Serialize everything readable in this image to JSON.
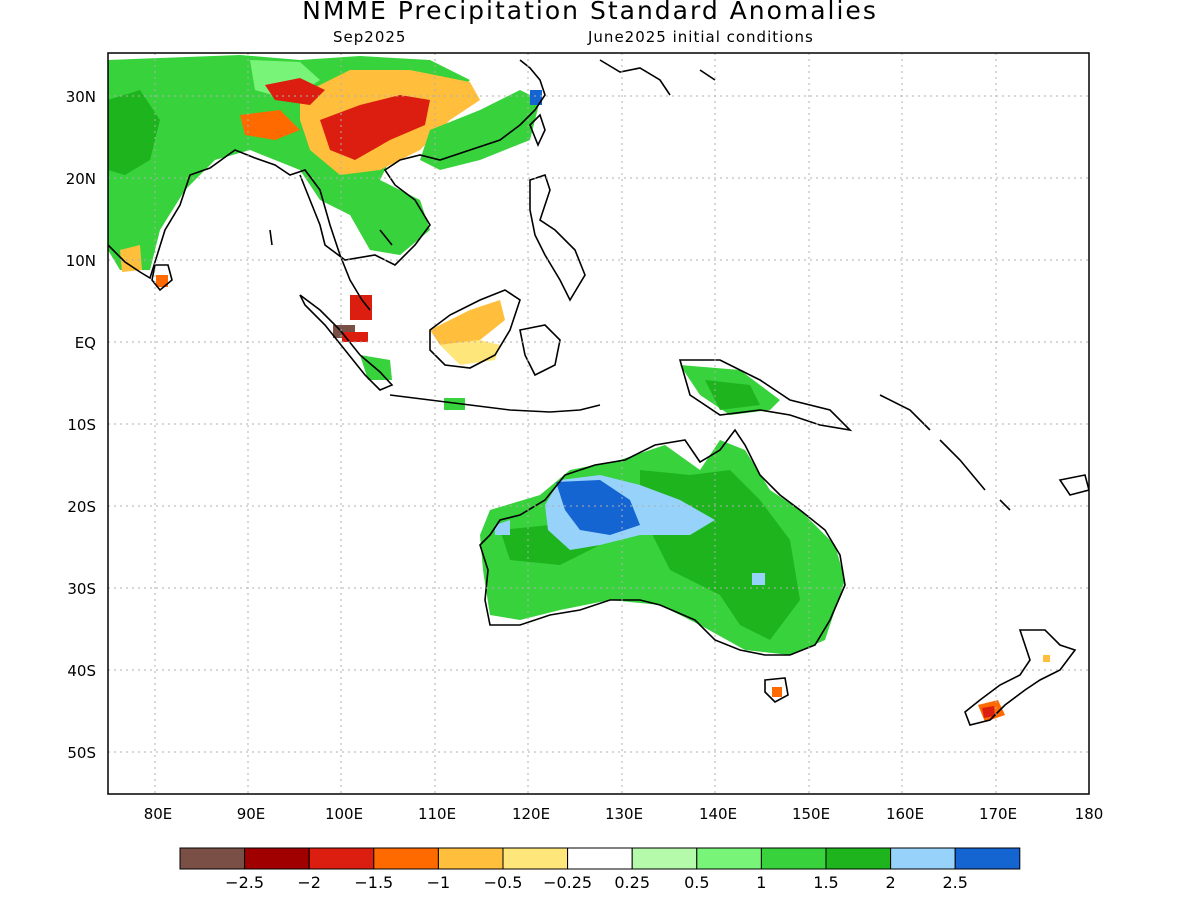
{
  "title": "NMME Precipitation Standard Anomalies",
  "subtitle_left": "Sep2025",
  "subtitle_right": "June2025 initial conditions",
  "lat_labels": [
    "30N",
    "20N",
    "10N",
    "EQ",
    "10S",
    "20S",
    "30S",
    "40S",
    "50S"
  ],
  "lon_labels": [
    "80E",
    "90E",
    "100E",
    "110E",
    "120E",
    "130E",
    "140E",
    "150E",
    "160E",
    "170E",
    "180"
  ],
  "colorbar": {
    "colors": [
      "#7a5046",
      "#a00000",
      "#dc1e10",
      "#ff6a00",
      "#ffbe3c",
      "#ffe67a",
      "#ffffff",
      "#b4faaa",
      "#78f578",
      "#37d23c",
      "#1eb41e",
      "#96d2fa",
      "#1464d2"
    ],
    "labels": [
      "-2.5",
      "-2",
      "-1.5",
      "-1",
      "-0.5",
      "-0.25",
      "0.25",
      "0.5",
      "1",
      "1.5",
      "2",
      "2.5"
    ]
  }
}
